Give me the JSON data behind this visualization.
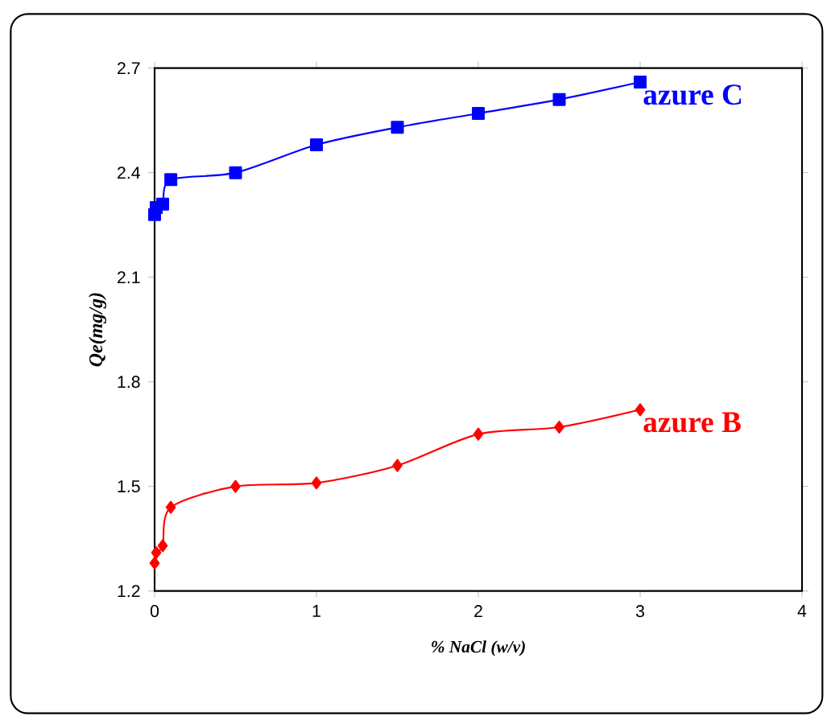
{
  "chart_data": {
    "type": "line",
    "xlabel": "% NaCl (w/v)",
    "ylabel": "Qe(mg/g)",
    "xlim": [
      0,
      4
    ],
    "ylim": [
      1.2,
      2.7
    ],
    "xticks": [
      0,
      1,
      2,
      3,
      4
    ],
    "yticks": [
      1.2,
      1.5,
      1.8,
      2.1,
      2.4,
      2.7
    ],
    "grid": false,
    "series": [
      {
        "name": "azure C",
        "color": "#0000ff",
        "marker": "square",
        "x": [
          0,
          0.01,
          0.05,
          0.1,
          0.5,
          1,
          1.5,
          2,
          2.5,
          3
        ],
        "values": [
          2.28,
          2.3,
          2.31,
          2.38,
          2.4,
          2.48,
          2.53,
          2.57,
          2.61,
          2.66
        ]
      },
      {
        "name": "azure B",
        "color": "#ff0000",
        "marker": "diamond",
        "x": [
          0,
          0.01,
          0.05,
          0.1,
          0.5,
          1,
          1.5,
          2,
          2.5,
          3
        ],
        "values": [
          1.28,
          1.31,
          1.33,
          1.44,
          1.5,
          1.51,
          1.56,
          1.65,
          1.67,
          1.72
        ]
      }
    ]
  }
}
